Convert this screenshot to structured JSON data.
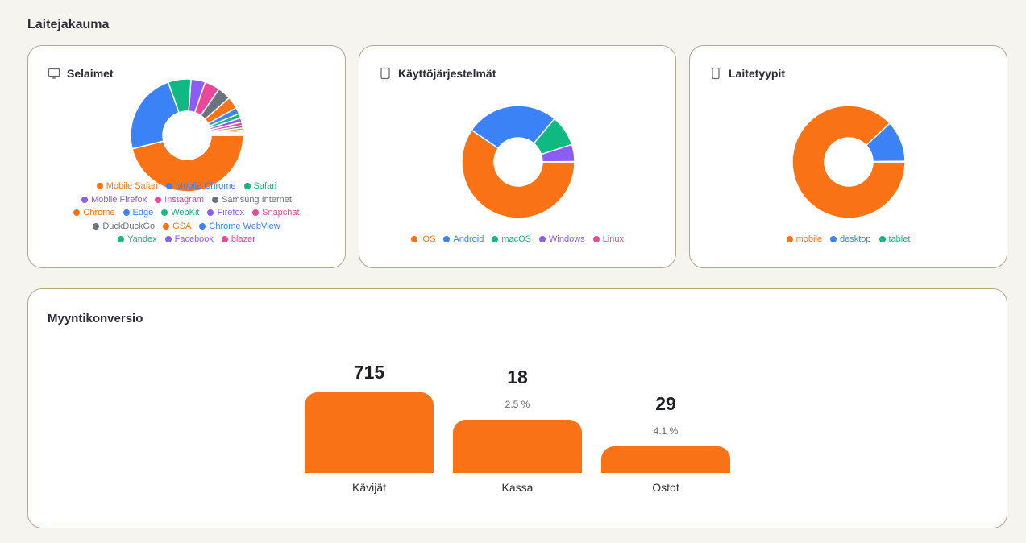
{
  "section_title": "Laitejakauma",
  "browsers": {
    "title": "Selaimet",
    "icon": "monitor-icon",
    "legend": [
      {
        "label": "Mobile Safari",
        "color": "#f97316"
      },
      {
        "label": "Mobile Chrome",
        "color": "#3b82f6"
      },
      {
        "label": "Safari",
        "color": "#10b981"
      },
      {
        "label": "Mobile Firefox",
        "color": "#8b5cf6"
      },
      {
        "label": "Instagram",
        "color": "#ec4899"
      },
      {
        "label": "Samsung Internet",
        "color": "#6b7280"
      },
      {
        "label": "Chrome",
        "color": "#f97316"
      },
      {
        "label": "Edge",
        "color": "#3b82f6"
      },
      {
        "label": "WebKit",
        "color": "#10b981"
      },
      {
        "label": "Firefox",
        "color": "#8b5cf6"
      },
      {
        "label": "Snapchat",
        "color": "#ec4899"
      },
      {
        "label": "DuckDuckGo",
        "color": "#6b7280"
      },
      {
        "label": "GSA",
        "color": "#f97316"
      },
      {
        "label": "Chrome WebView",
        "color": "#3b82f6"
      },
      {
        "label": "Yandex",
        "color": "#10b981"
      },
      {
        "label": "Facebook",
        "color": "#8b5cf6"
      },
      {
        "label": "blazer",
        "color": "#ec4899"
      }
    ],
    "shares": [
      46.3,
      23.5,
      6.6,
      4.1,
      4.4,
      3.8,
      3.5,
      1.8,
      1.3,
      1.2,
      1.0,
      0.7,
      0.6,
      0.5,
      0.4,
      0.3,
      0.3
    ]
  },
  "os": {
    "title": "Käyttöjärjestelmät",
    "icon": "tablet-icon",
    "legend": [
      {
        "label": "iOS",
        "color": "#f97316"
      },
      {
        "label": "Android",
        "color": "#3b82f6"
      },
      {
        "label": "macOS",
        "color": "#10b981"
      },
      {
        "label": "Windows",
        "color": "#8b5cf6"
      },
      {
        "label": "Linux",
        "color": "#ec4899"
      }
    ],
    "shares": [
      60.5,
      27.0,
      9.0,
      5.0,
      0.1
    ]
  },
  "devices": {
    "title": "Laitetyypit",
    "icon": "smartphone-icon",
    "legend": [
      {
        "label": "mobile",
        "color": "#f97316"
      },
      {
        "label": "desktop",
        "color": "#3b82f6"
      },
      {
        "label": "tablet",
        "color": "#10b981"
      }
    ],
    "shares": [
      88.0,
      11.8,
      0.2
    ]
  },
  "funnel": {
    "title": "Myyntikonversio",
    "steps": [
      {
        "label": "Kävijät",
        "value": "715",
        "pct": "",
        "level": 1.0
      },
      {
        "label": "Kassa",
        "value": "18",
        "pct": "2.5 %",
        "level": 0.66
      },
      {
        "label": "Ostot",
        "value": "29",
        "pct": "4.1 %",
        "level": 0.33
      }
    ],
    "bar_color": "#f97316"
  }
}
